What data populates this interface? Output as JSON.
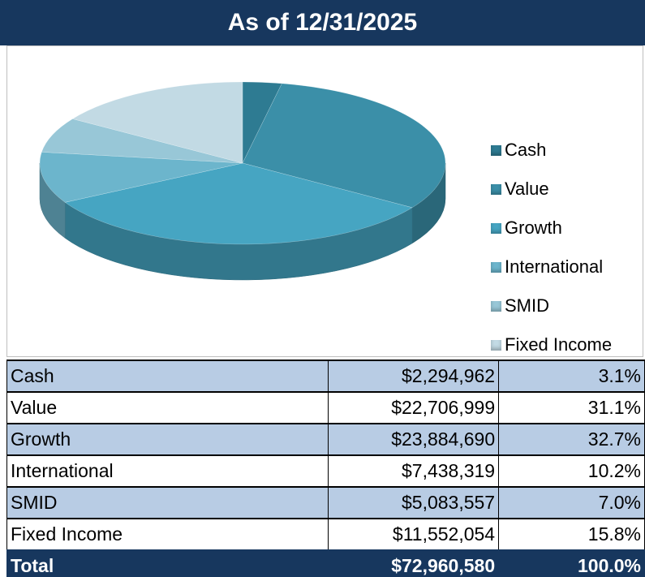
{
  "chart_data": {
    "type": "pie",
    "title": "As of 12/31/2025",
    "categories": [
      "Cash",
      "Value",
      "Growth",
      "International",
      "SMID",
      "Fixed Income"
    ],
    "values": [
      3.1,
      31.1,
      32.7,
      10.2,
      7.0,
      15.8
    ],
    "colors": [
      "#2e7b92",
      "#3b8fa8",
      "#46a5c2",
      "#6cb5cc",
      "#98c7d7",
      "#c2dae4"
    ],
    "legend": "right"
  },
  "table": {
    "rows": [
      [
        "Cash",
        "$2,294,962",
        "3.1%"
      ],
      [
        "Value",
        "$22,706,999",
        "31.1%"
      ],
      [
        "Growth",
        "$23,884,690",
        "32.7%"
      ],
      [
        "International",
        "$7,438,319",
        "10.2%"
      ],
      [
        "SMID",
        "$5,083,557",
        "7.0%"
      ],
      [
        "Fixed Income",
        "$11,552,054",
        "15.8%"
      ]
    ],
    "total": [
      "Total",
      "$72,960,580",
      "100.0%"
    ]
  }
}
